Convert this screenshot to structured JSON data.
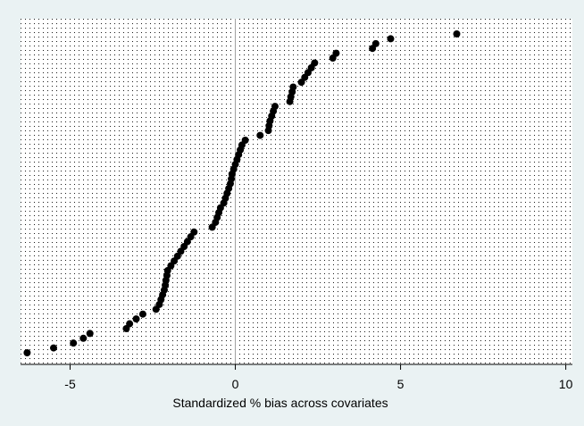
{
  "chart_data": {
    "type": "scatter",
    "title": "",
    "xlabel": "Standardized % bias across covariates",
    "ylabel": "",
    "xlim": [
      -6.5,
      10.2
    ],
    "x_ticks": [
      -5,
      0,
      5,
      10
    ],
    "x_tick_labels": [
      "-5",
      "0",
      "5",
      "10"
    ],
    "reference_line_x": 0,
    "grid": "dotted",
    "colors": {
      "outer_background": "#eaf2f3",
      "plot_background": "#ffffff",
      "grid_dots": "#1a1a1a",
      "markers": "#000000",
      "reference_line": "#a0a0a0"
    },
    "x": [
      -6.3,
      -5.5,
      -4.9,
      -4.6,
      -4.4,
      -3.3,
      -3.2,
      -3.0,
      -2.8,
      -2.4,
      -2.3,
      -2.25,
      -2.2,
      -2.15,
      -2.12,
      -2.1,
      -2.07,
      -2.05,
      -1.95,
      -1.85,
      -1.75,
      -1.65,
      -1.55,
      -1.45,
      -1.35,
      -1.25,
      -0.7,
      -0.6,
      -0.55,
      -0.5,
      -0.45,
      -0.35,
      -0.3,
      -0.25,
      -0.2,
      -0.15,
      -0.12,
      -0.1,
      -0.05,
      0.0,
      0.05,
      0.1,
      0.15,
      0.2,
      0.3,
      0.75,
      1.0,
      1.02,
      1.05,
      1.1,
      1.15,
      1.2,
      1.65,
      1.68,
      1.72,
      1.75,
      2.0,
      2.1,
      2.2,
      2.3,
      2.4,
      2.95,
      3.05,
      4.15,
      4.25,
      4.7,
      6.7
    ]
  }
}
